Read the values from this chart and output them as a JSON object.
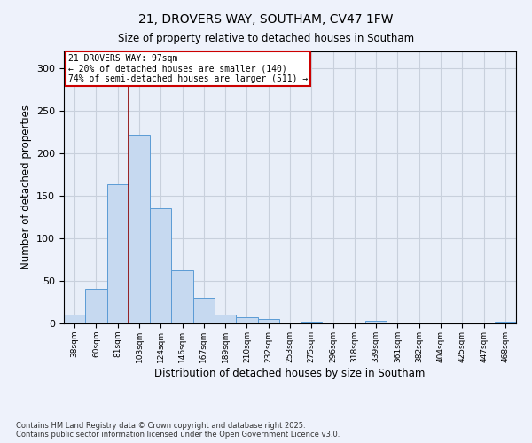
{
  "title_line1": "21, DROVERS WAY, SOUTHAM, CV47 1FW",
  "title_line2": "Size of property relative to detached houses in Southam",
  "xlabel": "Distribution of detached houses by size in Southam",
  "ylabel": "Number of detached properties",
  "categories": [
    "38sqm",
    "60sqm",
    "81sqm",
    "103sqm",
    "124sqm",
    "146sqm",
    "167sqm",
    "189sqm",
    "210sqm",
    "232sqm",
    "253sqm",
    "275sqm",
    "296sqm",
    "318sqm",
    "339sqm",
    "361sqm",
    "382sqm",
    "404sqm",
    "425sqm",
    "447sqm",
    "468sqm"
  ],
  "values": [
    10,
    41,
    163,
    222,
    135,
    62,
    30,
    10,
    7,
    5,
    0,
    2,
    0,
    0,
    3,
    0,
    1,
    0,
    0,
    1,
    2
  ],
  "bar_color": "#c6d9f0",
  "bar_edge_color": "#5b9bd5",
  "grid_color": "#c8d0dc",
  "vline_color": "#8b0000",
  "annotation_text_line1": "21 DROVERS WAY: 97sqm",
  "annotation_text_line2": "← 20% of detached houses are smaller (140)",
  "annotation_text_line3": "74% of semi-detached houses are larger (511) →",
  "annotation_color": "#cc0000",
  "ylim": [
    0,
    320
  ],
  "yticks": [
    0,
    50,
    100,
    150,
    200,
    250,
    300
  ],
  "footnote": "Contains HM Land Registry data © Crown copyright and database right 2025.\nContains public sector information licensed under the Open Government Licence v3.0.",
  "background_color": "#eef2fb",
  "plot_bg_color": "#e8eef8"
}
